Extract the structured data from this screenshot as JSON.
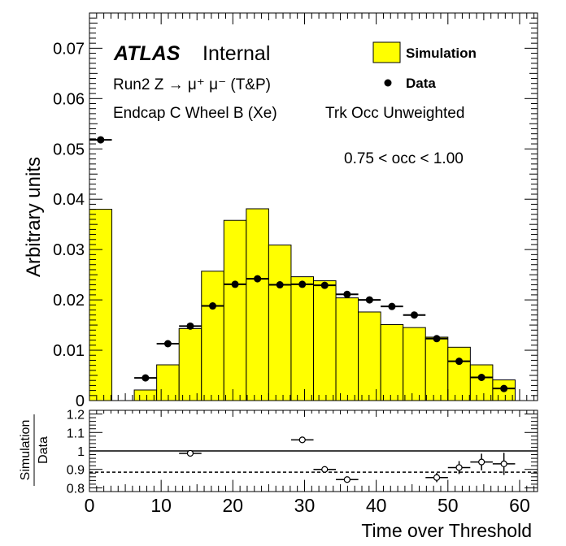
{
  "chart_data": [
    {
      "type": "bar",
      "panel": "main",
      "ylabel": "Arbitrary units",
      "xlim": [
        0,
        62.5
      ],
      "ylim": [
        0,
        0.077
      ],
      "yticks": [
        0,
        0.01,
        0.02,
        0.03,
        0.04,
        0.05,
        0.06,
        0.07
      ],
      "ytick_labels": [
        "0",
        "0.01",
        "0.02",
        "0.03",
        "0.04",
        "0.05",
        "0.06",
        "0.07"
      ],
      "bin_edges": [
        0,
        3.125,
        6.25,
        9.375,
        12.5,
        15.625,
        18.75,
        21.875,
        25,
        28.125,
        31.25,
        34.375,
        37.5,
        40.625,
        43.75,
        46.875,
        50,
        53.125,
        56.25,
        59.375
      ],
      "series": [
        {
          "name": "Simulation",
          "style": "filled-histogram",
          "color": "#ffff00",
          "values": [
            0.038,
            0.0,
            0.0021,
            0.0071,
            0.0143,
            0.0257,
            0.0358,
            0.0381,
            0.0309,
            0.0246,
            0.0238,
            0.0204,
            0.0176,
            0.0151,
            0.0145,
            0.0126,
            0.0106,
            0.0071,
            0.0041
          ]
        },
        {
          "name": "Data",
          "style": "markers",
          "color": "#000000",
          "values": [
            0.0518,
            null,
            0.0045,
            0.0113,
            0.0148,
            0.0188,
            0.0231,
            0.0242,
            0.023,
            0.0231,
            0.0229,
            0.0211,
            0.02,
            0.0187,
            0.017,
            0.0123,
            0.0078,
            0.0046,
            0.0024
          ]
        }
      ],
      "annotations": {
        "atlas": "ATLAS",
        "internal": "Internal",
        "line1": "Run2 Z → μ⁺ μ⁻ (T&P)",
        "line2": "Endcap C Wheel B (Xe)",
        "line3": "Trk Occ Unweighted",
        "line4": "0.75 < occ < 1.00"
      },
      "legend": [
        "Simulation",
        "Data"
      ],
      "legend_position": "top-right"
    },
    {
      "type": "scatter",
      "panel": "ratio",
      "ylabel_num": "Simulation",
      "ylabel_den": "Data",
      "xlabel": "Time over Threshold",
      "xlim": [
        0,
        62.5
      ],
      "ylim": [
        0.78,
        1.22
      ],
      "yticks": [
        0.8,
        0.9,
        1,
        1.1,
        1.2
      ],
      "ytick_labels": [
        "0.8",
        "0.9",
        "1",
        "1.1",
        "1.2"
      ],
      "xticks": [
        0,
        10,
        20,
        30,
        40,
        50,
        60
      ],
      "xtick_labels": [
        "0",
        "10",
        "20",
        "30",
        "40",
        "50",
        "60"
      ],
      "reference_line": 1.0,
      "dashed_line": 0.885,
      "points": [
        {
          "x": 14.06,
          "y": 0.987,
          "err": 0.015
        },
        {
          "x": 29.69,
          "y": 1.06,
          "err": 0.012
        },
        {
          "x": 32.81,
          "y": 0.9,
          "err": 0.012
        },
        {
          "x": 35.94,
          "y": 0.845,
          "err": 0.013
        },
        {
          "x": 48.44,
          "y": 0.856,
          "err": 0.025
        },
        {
          "x": 51.56,
          "y": 0.91,
          "err": 0.035
        },
        {
          "x": 54.69,
          "y": 0.94,
          "err": 0.045
        },
        {
          "x": 57.81,
          "y": 0.93,
          "err": 0.06
        }
      ]
    }
  ]
}
